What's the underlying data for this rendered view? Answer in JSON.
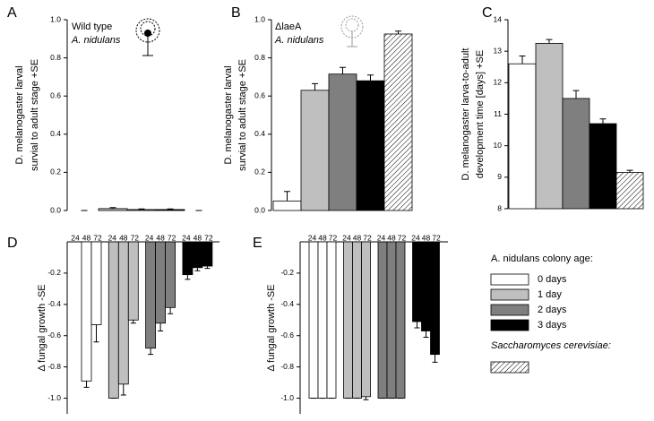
{
  "chart_data": [
    {
      "type": "bar",
      "label": "A",
      "ylabel": [
        "D. melanogaster larval",
        "survial to adult stage +SE"
      ],
      "annotation": [
        "Wild type",
        "A. nidulans"
      ],
      "ylim": [
        0,
        1
      ],
      "yticks": [
        {
          "value": 0,
          "label": "0.0"
        },
        0.2,
        0.4,
        0.6,
        0.8,
        {
          "value": 1,
          "label": "1.0"
        }
      ],
      "values": [
        0,
        0.01,
        0.005,
        0.005,
        0
      ],
      "errors": [
        0,
        0.005,
        0.003,
        0.003,
        0
      ],
      "colors": [
        "#ffffff",
        "#bfbfbf",
        "#7f7f7f",
        "#000000",
        "hatch"
      ]
    },
    {
      "type": "bar",
      "label": "B",
      "ylabel": [
        "D. melanogaster larval",
        "survial to adult stage +SE"
      ],
      "annotation": [
        "ΔlaeA",
        "A. nidulans"
      ],
      "ylim": [
        0,
        1
      ],
      "yticks": [
        {
          "value": 0,
          "label": "0.0"
        },
        0.2,
        0.4,
        0.6,
        0.8,
        {
          "value": 1,
          "label": "1.0"
        }
      ],
      "values": [
        0.05,
        0.63,
        0.715,
        0.68,
        0.925
      ],
      "errors": [
        0.05,
        0.035,
        0.035,
        0.03,
        0.015
      ],
      "colors": [
        "#ffffff",
        "#bfbfbf",
        "#7f7f7f",
        "#000000",
        "hatch"
      ]
    },
    {
      "type": "bar",
      "label": "C",
      "ylabel": [
        "D. melanogaster larva-to-adult",
        "development time [days] +SE"
      ],
      "ylim": [
        8,
        14
      ],
      "yticks": [
        8,
        9,
        10,
        11,
        12,
        13,
        14
      ],
      "values": [
        12.6,
        13.25,
        11.5,
        10.7,
        9.15
      ],
      "errors": [
        0.25,
        0.12,
        0.25,
        0.15,
        0.07
      ],
      "colors": [
        "#ffffff",
        "#bfbfbf",
        "#7f7f7f",
        "#000000",
        "hatch"
      ]
    },
    {
      "type": "grouped_bar",
      "label": "D",
      "ylabel": [
        "Δ fungal growth -SE"
      ],
      "categories": [
        "24",
        "48",
        "72"
      ],
      "ylim": [
        -1.1,
        0
      ],
      "yticks": [
        -0.2,
        -0.4,
        -0.6,
        -0.8,
        {
          "value": -1,
          "label": "-1.0"
        }
      ],
      "series": [
        {
          "color": "#ffffff",
          "values": [
            null,
            -0.89,
            -0.53
          ],
          "errors": [
            null,
            0.04,
            0.11
          ]
        },
        {
          "color": "#bfbfbf",
          "values": [
            -1,
            -0.91,
            -0.5
          ],
          "errors": [
            0,
            0.07,
            0.02
          ]
        },
        {
          "color": "#7f7f7f",
          "values": [
            -0.68,
            -0.52,
            -0.42
          ],
          "errors": [
            0.04,
            0.05,
            0.04
          ]
        },
        {
          "color": "#000000",
          "values": [
            -0.21,
            -0.165,
            -0.155
          ],
          "errors": [
            0.03,
            0.02,
            0.015
          ]
        }
      ]
    },
    {
      "type": "grouped_bar",
      "label": "E",
      "ylabel": [
        "Δ fungal growth -SE"
      ],
      "categories": [
        "24",
        "48",
        "72"
      ],
      "ylim": [
        -1.1,
        0
      ],
      "yticks": [
        -0.2,
        -0.4,
        -0.6,
        -0.8,
        {
          "value": -1,
          "label": "-1.0"
        }
      ],
      "series": [
        {
          "color": "#ffffff",
          "values": [
            -1,
            -1,
            -1
          ],
          "errors": [
            0,
            0,
            0
          ]
        },
        {
          "color": "#bfbfbf",
          "values": [
            -1,
            -1,
            -0.99
          ],
          "errors": [
            0,
            0,
            0.02
          ]
        },
        {
          "color": "#7f7f7f",
          "values": [
            -1,
            -1,
            -1
          ],
          "errors": [
            0,
            0,
            0
          ]
        },
        {
          "color": "#000000",
          "values": [
            -0.51,
            -0.57,
            -0.72
          ],
          "errors": [
            0.04,
            0.04,
            0.05
          ]
        }
      ]
    }
  ],
  "legend": {
    "title": "A. nidulans colony age:",
    "items": [
      {
        "label": "0 days",
        "color": "#ffffff"
      },
      {
        "label": "1 day",
        "color": "#bfbfbf"
      },
      {
        "label": "2 days",
        "color": "#7f7f7f"
      },
      {
        "label": "3 days",
        "color": "#000000"
      }
    ],
    "title2": "Saccharomyces cerevisiae:",
    "color2": "hatch"
  }
}
